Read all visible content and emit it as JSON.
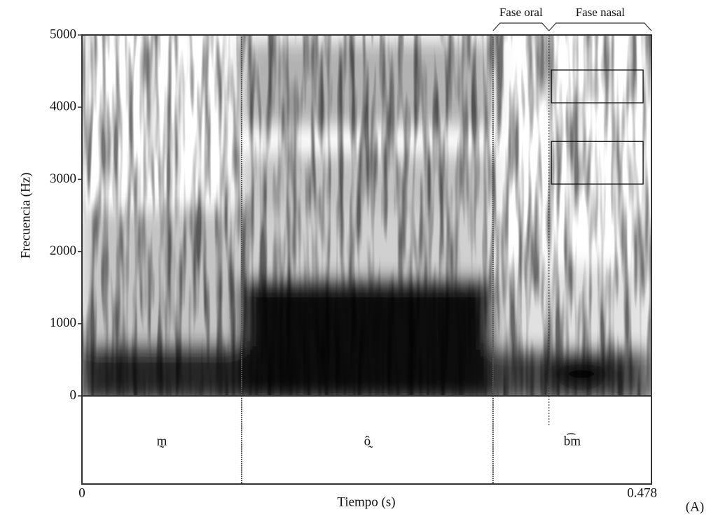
{
  "chart_data": {
    "type": "spectrogram",
    "xlabel": "Tiempo (s)",
    "ylabel": "Frecuencia (Hz)",
    "xlim": [
      0,
      0.478
    ],
    "xticks": [
      0,
      0.478
    ],
    "ylim": [
      0,
      5000
    ],
    "yticks": [
      0,
      1000,
      2000,
      3000,
      4000,
      5000
    ],
    "segments": [
      {
        "label": "m̰",
        "start": 0,
        "end": 0.134
      },
      {
        "label": "ô̰",
        "start": 0.134,
        "end": 0.345
      },
      {
        "label": "b͡m",
        "start": 0.345,
        "end": 0.478
      }
    ],
    "phases": [
      {
        "label": "Fase oral",
        "start": 0.345,
        "end": 0.392
      },
      {
        "label": "Fase nasal",
        "start": 0.392,
        "end": 0.478
      }
    ],
    "boxes": [
      {
        "start": 0.394,
        "end": 0.471,
        "low": 4060,
        "high": 4515
      },
      {
        "start": 0.394,
        "end": 0.471,
        "low": 2935,
        "high": 3525
      }
    ],
    "panel_label": "(A)"
  }
}
